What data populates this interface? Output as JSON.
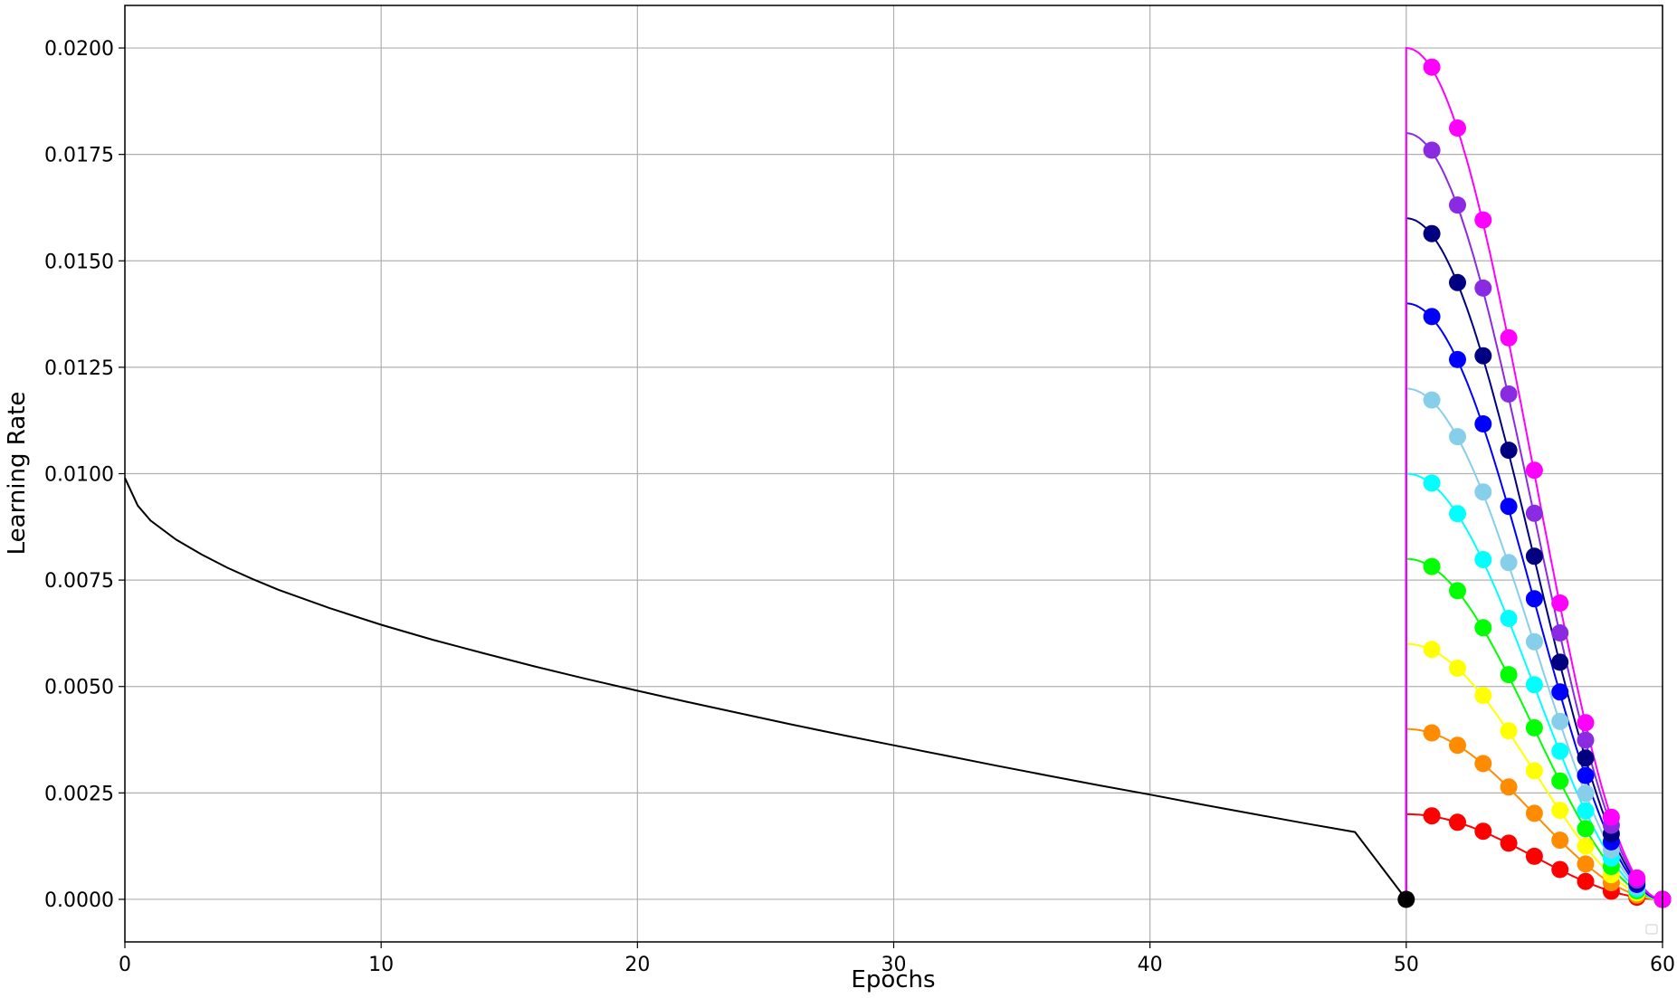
{
  "chart_data": {
    "type": "line",
    "title": "",
    "xlabel": "Epochs",
    "ylabel": "Learning Rate",
    "grid": true,
    "legend": "bottom-right (empty)",
    "xlim": [
      0,
      60
    ],
    "ylim": [
      -0.001,
      0.021
    ],
    "x_ticks": [
      0,
      10,
      20,
      30,
      40,
      50,
      60
    ],
    "x_tick_labels": [
      "0",
      "10",
      "20",
      "30",
      "40",
      "50",
      "60"
    ],
    "y_ticks": [
      0,
      0.0025,
      0.005,
      0.0075,
      0.01,
      0.0125,
      0.015,
      0.0175,
      0.02
    ],
    "y_tick_labels": [
      "0.0000",
      "0.0025",
      "0.0050",
      "0.0075",
      "0.0100",
      "0.0125",
      "0.0150",
      "0.0175",
      "0.0200"
    ],
    "base_curve": {
      "color": "#000000",
      "x": [
        0,
        0.5,
        1,
        2,
        3,
        4,
        5,
        6,
        8,
        10,
        12,
        14,
        16,
        18,
        20,
        22,
        24,
        26,
        28,
        30,
        32,
        34,
        36,
        38,
        40,
        42,
        44,
        46,
        48,
        50
      ],
      "y": [
        0.0099,
        0.00925,
        0.0089,
        0.00845,
        0.0081,
        0.00779,
        0.00752,
        0.00727,
        0.00684,
        0.00645,
        0.0061,
        0.00578,
        0.00547,
        0.00518,
        0.0049,
        0.00463,
        0.00437,
        0.00411,
        0.00386,
        0.00362,
        0.00338,
        0.00314,
        0.00291,
        0.00268,
        0.00246,
        0.00223,
        0.00201,
        0.00179,
        0.00158,
        0.0
      ],
      "end_marker": {
        "x": 50,
        "y": 0.0
      }
    },
    "marker_x": [
      51,
      52,
      53,
      54,
      55,
      56,
      57,
      58,
      59,
      60
    ],
    "series": [
      {
        "color": "#ff00ff",
        "start": 0.02,
        "values": [
          0.01955,
          0.01812,
          0.01596,
          0.01319,
          0.01008,
          0.00696,
          0.00415,
          0.00193,
          0.0005,
          0.0
        ]
      },
      {
        "color": "#8a2be2",
        "start": 0.018,
        "values": [
          0.0176,
          0.01631,
          0.01436,
          0.01187,
          0.00907,
          0.00626,
          0.00374,
          0.00174,
          0.00045,
          0.0
        ]
      },
      {
        "color": "#000080",
        "start": 0.016,
        "values": [
          0.01564,
          0.01449,
          0.01277,
          0.01055,
          0.00806,
          0.00557,
          0.00332,
          0.00154,
          0.0004,
          0.0
        ]
      },
      {
        "color": "#0000ff",
        "start": 0.014,
        "values": [
          0.01369,
          0.01268,
          0.01117,
          0.00923,
          0.00706,
          0.00487,
          0.00291,
          0.00135,
          0.00035,
          0.0
        ]
      },
      {
        "color": "#87ceeb",
        "start": 0.012,
        "values": [
          0.01173,
          0.01087,
          0.00957,
          0.00791,
          0.00605,
          0.00418,
          0.00249,
          0.00116,
          0.0003,
          0.0
        ]
      },
      {
        "color": "#00ffff",
        "start": 0.01,
        "values": [
          0.00978,
          0.00906,
          0.00798,
          0.0066,
          0.00504,
          0.00348,
          0.00208,
          0.00097,
          0.00025,
          0.0
        ]
      },
      {
        "color": "#00ff00",
        "start": 0.008,
        "values": [
          0.00782,
          0.00725,
          0.00638,
          0.00528,
          0.00403,
          0.00278,
          0.00166,
          0.00077,
          0.0002,
          0.0
        ]
      },
      {
        "color": "#ffff00",
        "start": 0.006,
        "values": [
          0.00587,
          0.00543,
          0.00479,
          0.00396,
          0.00302,
          0.00209,
          0.00125,
          0.00058,
          0.00015,
          0.0
        ]
      },
      {
        "color": "#ff8c00",
        "start": 0.004,
        "values": [
          0.00391,
          0.00362,
          0.00319,
          0.00264,
          0.00202,
          0.00139,
          0.00083,
          0.00039,
          0.0001,
          0.0
        ]
      },
      {
        "color": "#ff0000",
        "start": 0.002,
        "values": [
          0.00196,
          0.00181,
          0.0016,
          0.00132,
          0.00101,
          0.0007,
          0.00042,
          0.00019,
          5e-05,
          0.0
        ]
      }
    ]
  }
}
